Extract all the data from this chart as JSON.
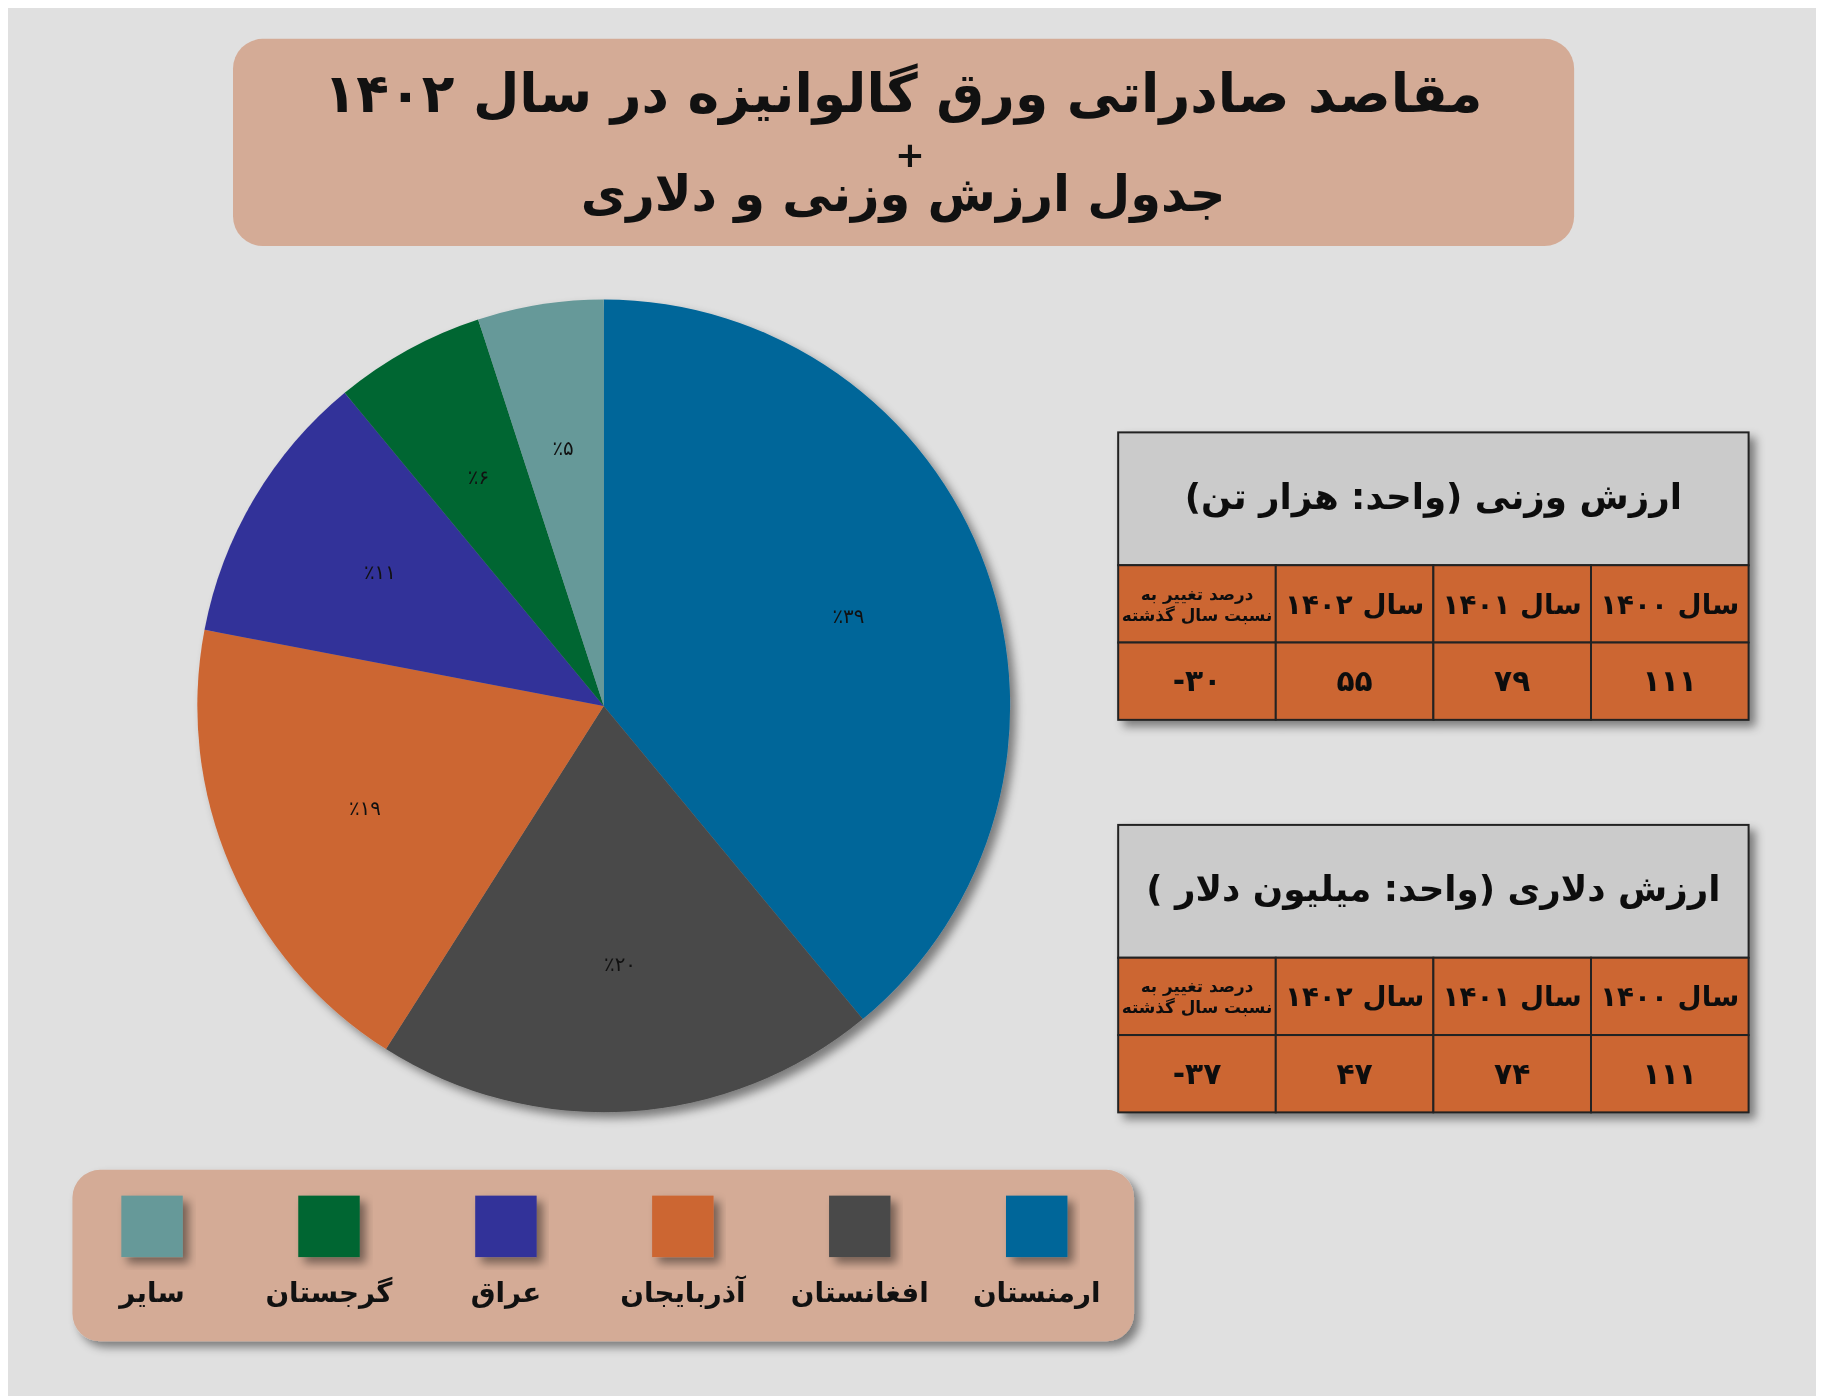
{
  "chart_data": [
    {
      "type": "pie",
      "title": "مقاصد صادراتی ورق گالوانیزه در سال ۱۴۰۲",
      "subtitle": "جدول ارزش وزنی و دلاری",
      "annotations": [
        "+"
      ],
      "categories": [
        "ارمنستان",
        "افغانستان",
        "آذربایجان",
        "عراق",
        "گرجستان",
        "سایر"
      ],
      "values": [
        39,
        20,
        19,
        11,
        6,
        5
      ],
      "value_labels": [
        "٪۳۹",
        "٪۲۰",
        "٪۱۹",
        "٪۱۱",
        "٪۶",
        "٪۵"
      ],
      "colors": [
        "#006699",
        "#4a4a4a",
        "#cc6633",
        "#333399",
        "#006633",
        "#669999"
      ],
      "legend": "bottom"
    },
    {
      "type": "other",
      "title": "ارزش وزنی (واحد: هزار تن)",
      "categories": [
        "درصد تغییر به نسبت سال گذشته",
        "سال ۱۴۰۲",
        "سال ۱۴۰۱",
        "سال ۱۴۰۰"
      ],
      "values": [
        -30,
        55,
        79,
        111
      ],
      "value_labels": [
        "-۳۰",
        "۵۵",
        "۷۹",
        "۱۱۱"
      ]
    },
    {
      "type": "other",
      "title": "ارزش دلاری (واحد: میلیون دلار )",
      "categories": [
        "درصد تغییر به نسبت سال گذشته",
        "سال ۱۴۰۲",
        "سال ۱۴۰۱",
        "سال ۱۴۰۰"
      ],
      "values": [
        -37,
        47,
        74,
        111
      ],
      "value_labels": [
        "-۳۷",
        "۴۷",
        "۷۴",
        "۱۱۱"
      ]
    }
  ]
}
